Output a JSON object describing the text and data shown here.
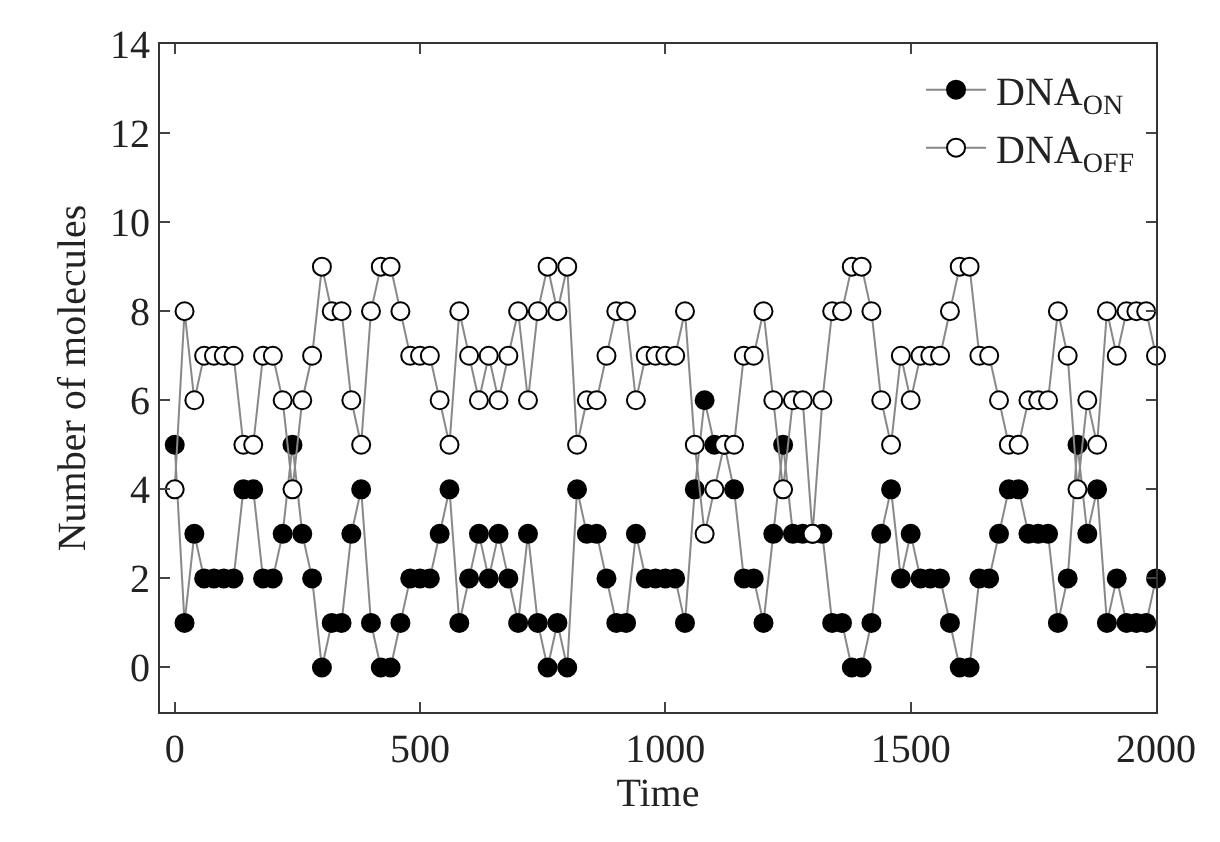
{
  "chart_data": {
    "type": "line",
    "xlabel": "Time",
    "ylabel": "Number of molecules",
    "x": [
      0,
      20,
      40,
      60,
      80,
      100,
      120,
      140,
      160,
      180,
      200,
      220,
      240,
      260,
      280,
      300,
      320,
      340,
      360,
      380,
      400,
      420,
      440,
      460,
      480,
      500,
      520,
      540,
      560,
      580,
      600,
      620,
      640,
      660,
      680,
      700,
      720,
      740,
      760,
      780,
      800,
      820,
      840,
      860,
      880,
      900,
      920,
      940,
      960,
      980,
      1000,
      1020,
      1040,
      1060,
      1080,
      1100,
      1120,
      1140,
      1160,
      1180,
      1200,
      1220,
      1240,
      1260,
      1280,
      1300,
      1320,
      1340,
      1360,
      1380,
      1400,
      1420,
      1440,
      1460,
      1480,
      1500,
      1520,
      1540,
      1560,
      1580,
      1600,
      1620,
      1640,
      1660,
      1680,
      1700,
      1720,
      1740,
      1760,
      1780,
      1800,
      1820,
      1840,
      1860,
      1880,
      1900,
      1920,
      1940,
      1960,
      1980,
      2000
    ],
    "series": [
      {
        "name": "DNA$_{ON}$",
        "color": "#000000",
        "values": [
          5,
          1,
          3,
          2,
          2,
          2,
          2,
          4,
          4,
          2,
          2,
          3,
          5,
          3,
          2,
          0,
          1,
          1,
          3,
          4,
          1,
          0,
          0,
          1,
          2,
          2,
          2,
          3,
          4,
          1,
          2,
          3,
          2,
          3,
          2,
          1,
          3,
          1,
          0,
          1,
          0,
          4,
          3,
          3,
          2,
          1,
          1,
          3,
          2,
          2,
          2,
          2,
          1,
          4,
          6,
          5,
          5,
          4,
          2,
          2,
          1,
          3,
          5,
          3,
          3,
          3,
          3,
          1,
          1,
          0,
          0,
          1,
          3,
          4,
          2,
          3,
          2,
          2,
          2,
          1,
          0,
          0,
          2,
          2,
          3,
          4,
          4,
          3,
          3,
          3,
          1,
          2,
          5,
          3,
          4,
          1,
          2,
          1,
          1,
          1,
          2
        ]
      },
      {
        "name": "DNA$_{OFF}$",
        "color": "#ffffff",
        "values": [
          4,
          8,
          6,
          7,
          7,
          7,
          7,
          5,
          5,
          7,
          7,
          6,
          4,
          6,
          7,
          9,
          8,
          8,
          6,
          5,
          8,
          9,
          9,
          8,
          7,
          7,
          7,
          6,
          5,
          8,
          7,
          6,
          7,
          6,
          7,
          8,
          6,
          8,
          9,
          8,
          9,
          5,
          6,
          6,
          7,
          8,
          8,
          6,
          7,
          7,
          7,
          7,
          8,
          5,
          3,
          4,
          5,
          5,
          7,
          7,
          8,
          6,
          4,
          6,
          6,
          3,
          6,
          8,
          8,
          9,
          9,
          8,
          6,
          5,
          7,
          6,
          7,
          7,
          7,
          8,
          9,
          9,
          7,
          7,
          6,
          5,
          5,
          6,
          6,
          6,
          8,
          7,
          4,
          6,
          5,
          8,
          7,
          8,
          8,
          8,
          7
        ]
      }
    ],
    "xlim": [
      -30,
      2000
    ],
    "xticks": [
      0,
      500,
      1000,
      1500,
      2000
    ],
    "ylim": [
      -1,
      14
    ],
    "yticks": [
      0,
      2,
      4,
      6,
      8,
      10,
      12,
      14
    ],
    "legend": "top right",
    "marker": "circle",
    "line_style": "solid"
  }
}
